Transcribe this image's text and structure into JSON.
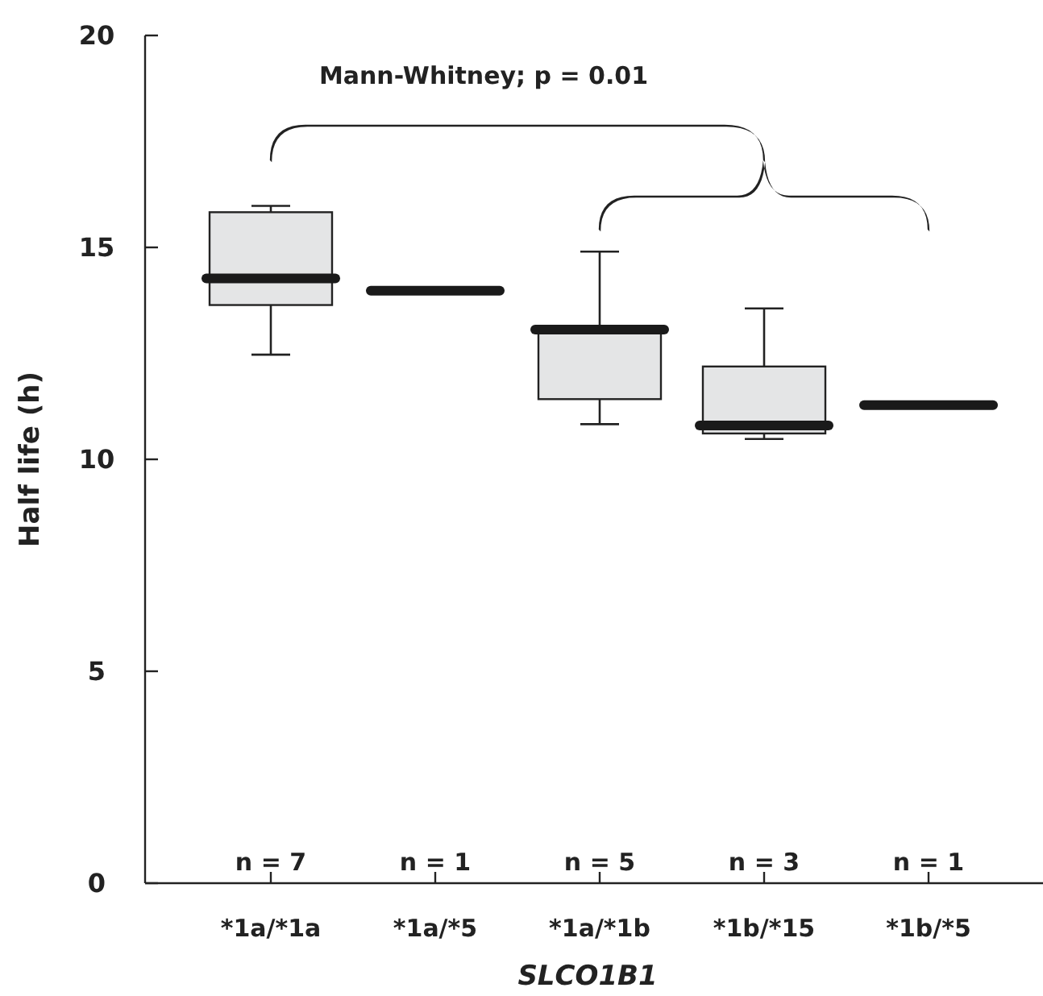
{
  "chart_data": {
    "type": "box",
    "xlabel": "SLCO1B1",
    "ylabel": "Half life (h)",
    "categories": [
      "*1a/*1a",
      "*1a/*5",
      "*1a/*1b",
      "*1b/*15",
      "*1b/*5"
    ],
    "boxes": [
      {
        "low": 12.47,
        "q1": 13.64,
        "median": 14.27,
        "q3": 15.83,
        "high": 15.98
      },
      {
        "low": 13.98,
        "q1": 13.98,
        "median": 13.98,
        "q3": 13.98,
        "high": 13.98
      },
      {
        "low": 10.83,
        "q1": 11.42,
        "median": 13.06,
        "q3": 13.06,
        "high": 14.9
      },
      {
        "low": 10.48,
        "q1": 10.61,
        "median": 10.8,
        "q3": 12.19,
        "high": 13.56
      },
      {
        "low": 11.28,
        "q1": 11.28,
        "median": 11.28,
        "q3": 11.28,
        "high": 11.28
      }
    ],
    "colors": [
      "#e4e5e6",
      "#1a1a1a",
      "#e4e5e6",
      "#e4e5e6",
      "#1a1a1a"
    ],
    "ylim": [
      0,
      20
    ],
    "yticks": [
      0,
      5,
      10,
      15,
      20
    ],
    "annotations": [
      "Mann-Whitney; p = 0.01",
      "n = 7",
      "n = 1",
      "n = 5",
      "n = 3",
      "n = 1"
    ]
  }
}
